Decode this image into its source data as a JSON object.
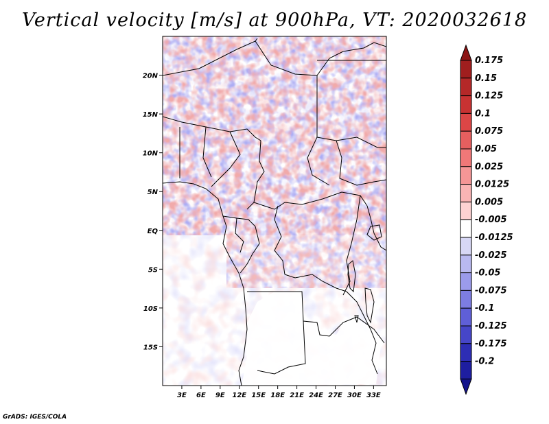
{
  "title": "Vertical velocity [m/s] at 900hPa, VT: 2020032618",
  "credit": "GrADS: IGES/COLA",
  "map": {
    "lon_range": [
      0,
      35
    ],
    "lat_range": [
      -20,
      25
    ],
    "lon_ticks": [
      {
        "value": 3,
        "label": "3E"
      },
      {
        "value": 6,
        "label": "6E"
      },
      {
        "value": 9,
        "label": "9E"
      },
      {
        "value": 12,
        "label": "12E"
      },
      {
        "value": 15,
        "label": "15E"
      },
      {
        "value": 18,
        "label": "18E"
      },
      {
        "value": 21,
        "label": "21E"
      },
      {
        "value": 24,
        "label": "24E"
      },
      {
        "value": 27,
        "label": "27E"
      },
      {
        "value": 30,
        "label": "30E"
      },
      {
        "value": 33,
        "label": "33E"
      }
    ],
    "lat_ticks": [
      {
        "value": 20,
        "label": "20N"
      },
      {
        "value": 15,
        "label": "15N"
      },
      {
        "value": 10,
        "label": "10N"
      },
      {
        "value": 5,
        "label": "5N"
      },
      {
        "value": 0,
        "label": "EQ"
      },
      {
        "value": -5,
        "label": "5S"
      },
      {
        "value": -10,
        "label": "10S"
      },
      {
        "value": -15,
        "label": "15S"
      }
    ]
  },
  "colorbar": {
    "levels": [
      {
        "label": "0.175",
        "color": "#a01e1e"
      },
      {
        "label": "0.15",
        "color": "#b42828"
      },
      {
        "label": "0.125",
        "color": "#c83232"
      },
      {
        "label": "0.1",
        "color": "#dc4646"
      },
      {
        "label": "0.075",
        "color": "#e65f5f"
      },
      {
        "label": "0.05",
        "color": "#f07878"
      },
      {
        "label": "0.025",
        "color": "#f59696"
      },
      {
        "label": "0.0125",
        "color": "#fab4b4"
      },
      {
        "label": "0.005",
        "color": "#fdd2d2"
      },
      {
        "label": "-0.005",
        "color": "#ffffff"
      },
      {
        "label": "-0.0125",
        "color": "#d7d7f5"
      },
      {
        "label": "-0.025",
        "color": "#b9b9f0"
      },
      {
        "label": "-0.05",
        "color": "#9b9beb"
      },
      {
        "label": "-0.075",
        "color": "#7d7de1"
      },
      {
        "label": "-0.1",
        "color": "#5f5fd7"
      },
      {
        "label": "-0.125",
        "color": "#4646c8"
      },
      {
        "label": "-0.175",
        "color": "#2d2db4"
      },
      {
        "label": "-0.2",
        "color": "#1e1ea0"
      }
    ],
    "top_color": "#8c1414",
    "bottom_color": "#14148c"
  }
}
